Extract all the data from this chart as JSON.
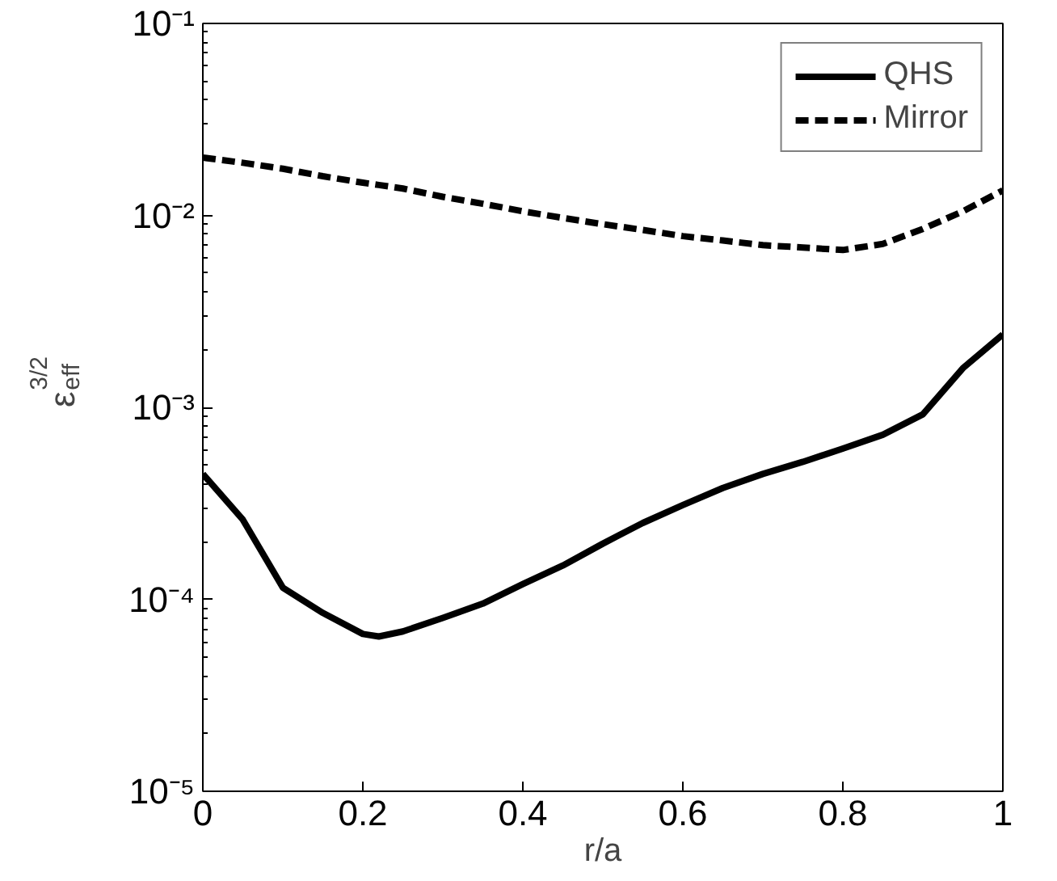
{
  "chart_data": {
    "type": "line",
    "xlabel": "r/a",
    "ylabel": "ε$_{eff}$$^{3/2}$",
    "log": "y",
    "grid": false,
    "legend": "top right",
    "xlim": [
      0,
      1
    ],
    "ylim": [
      1e-05,
      0.1
    ],
    "xticks": [
      0,
      0.2,
      0.4,
      0.6,
      0.8,
      1
    ],
    "yticks": [
      {
        "value": 1e-05,
        "label": "10⁻⁵"
      },
      {
        "value": 0.0001,
        "label": "10⁻⁴"
      },
      {
        "value": 0.001,
        "label": "10⁻³"
      },
      {
        "value": 0.01,
        "label": "10⁻²"
      },
      {
        "value": 0.1,
        "label": "10⁻¹"
      }
    ],
    "x": [
      0,
      0.05,
      0.1,
      0.15,
      0.2,
      0.22,
      0.25,
      0.3,
      0.35,
      0.4,
      0.45,
      0.5,
      0.55,
      0.6,
      0.65,
      0.7,
      0.75,
      0.8,
      0.85,
      0.9,
      0.95,
      1.0
    ],
    "series": [
      {
        "name": "QHS",
        "color": "#000000",
        "line_style": "solid",
        "values": [
          0.00045,
          0.00026,
          0.000115,
          8.5e-05,
          6.6e-05,
          6.4e-05,
          6.8e-05,
          8e-05,
          9.5e-05,
          0.00012,
          0.00015,
          0.000195,
          0.00025,
          0.00031,
          0.00038,
          0.00045,
          0.00052,
          0.00061,
          0.00072,
          0.00092,
          0.0016,
          0.0024
        ]
      },
      {
        "name": "Mirror",
        "color": "#000000",
        "line_style": "dashed",
        "values": [
          0.02,
          0.0188,
          0.0175,
          0.016,
          0.0148,
          0.0144,
          0.0138,
          0.0125,
          0.0115,
          0.0105,
          0.0097,
          0.009,
          0.0084,
          0.0078,
          0.0074,
          0.007,
          0.0068,
          0.0066,
          0.0071,
          0.0085,
          0.0105,
          0.0135
        ]
      }
    ]
  }
}
